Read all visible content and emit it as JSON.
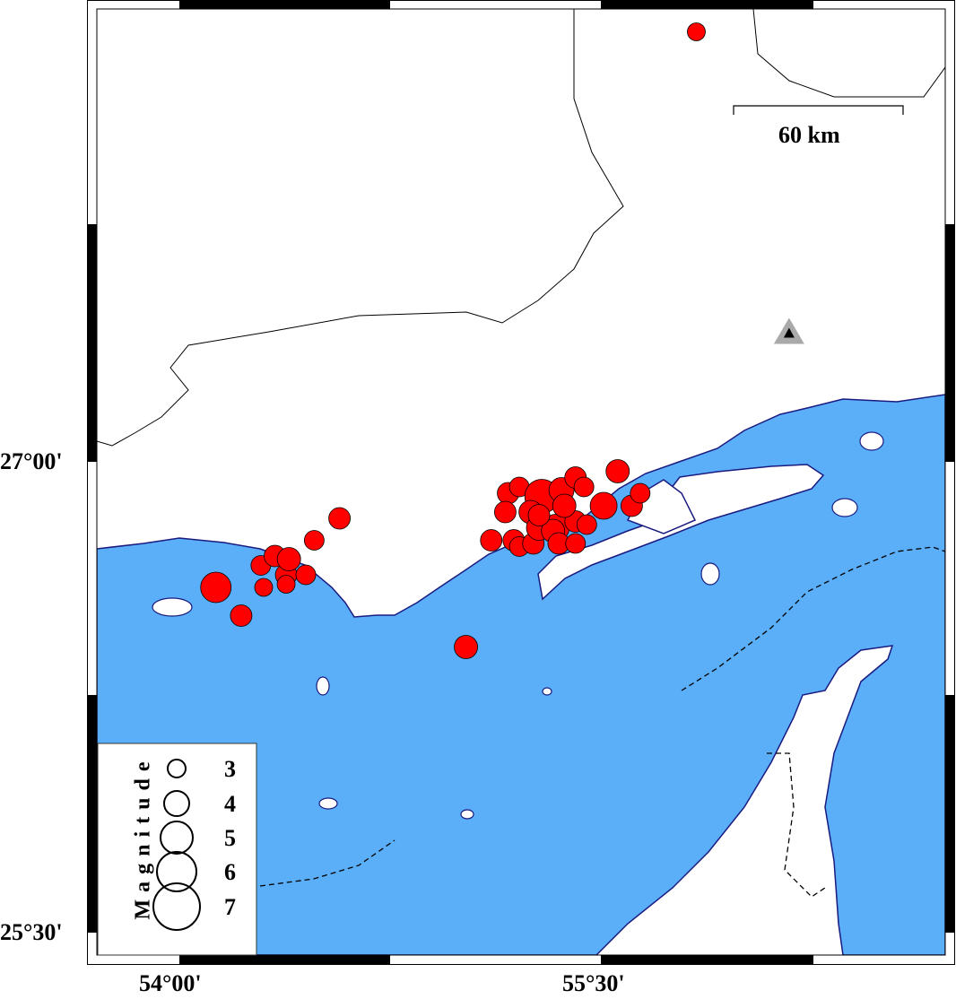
{
  "map": {
    "colors": {
      "sea": "#5aaff8",
      "land": "#ffffff",
      "coast": "#1a1a80",
      "event": "#ff0000",
      "station": "#000000"
    },
    "x_ticks": [
      "54°00'",
      "55°30'"
    ],
    "y_ticks": [
      "27°00'",
      "25°30'"
    ],
    "scale_bar": {
      "label": "60 km"
    },
    "legend": {
      "title": "Magnitude",
      "magnitudes": [
        "3",
        "4",
        "5",
        "6",
        "7"
      ]
    },
    "station": {
      "lon": 56.17,
      "lat": 27.41,
      "icon": "triangle-icon"
    },
    "events": [
      {
        "lon": 55.84,
        "lat": 28.37,
        "mag": 3.0
      },
      {
        "lon": 54.13,
        "lat": 26.6,
        "mag": 4.75
      },
      {
        "lon": 54.22,
        "lat": 26.51,
        "mag": 3.5
      },
      {
        "lon": 54.3,
        "lat": 26.6,
        "mag": 3.0
      },
      {
        "lon": 54.29,
        "lat": 26.67,
        "mag": 3.25
      },
      {
        "lon": 54.34,
        "lat": 26.7,
        "mag": 3.5
      },
      {
        "lon": 54.38,
        "lat": 26.64,
        "mag": 3.5
      },
      {
        "lon": 54.39,
        "lat": 26.69,
        "mag": 3.75
      },
      {
        "lon": 54.45,
        "lat": 26.64,
        "mag": 3.25
      },
      {
        "lon": 54.38,
        "lat": 26.61,
        "mag": 3.0
      },
      {
        "lon": 54.48,
        "lat": 26.75,
        "mag": 3.25
      },
      {
        "lon": 54.57,
        "lat": 26.82,
        "mag": 3.5
      },
      {
        "lon": 55.02,
        "lat": 26.41,
        "mag": 3.75
      },
      {
        "lon": 55.11,
        "lat": 26.75,
        "mag": 3.5
      },
      {
        "lon": 55.19,
        "lat": 26.75,
        "mag": 3.5
      },
      {
        "lon": 55.21,
        "lat": 26.73,
        "mag": 3.25
      },
      {
        "lon": 55.26,
        "lat": 26.74,
        "mag": 3.5
      },
      {
        "lon": 55.17,
        "lat": 26.9,
        "mag": 3.5
      },
      {
        "lon": 55.21,
        "lat": 26.92,
        "mag": 3.25
      },
      {
        "lon": 55.29,
        "lat": 26.89,
        "mag": 5.25
      },
      {
        "lon": 55.36,
        "lat": 26.91,
        "mag": 4.0
      },
      {
        "lon": 55.41,
        "lat": 26.95,
        "mag": 3.5
      },
      {
        "lon": 55.44,
        "lat": 26.92,
        "mag": 3.25
      },
      {
        "lon": 55.16,
        "lat": 26.84,
        "mag": 3.5
      },
      {
        "lon": 55.25,
        "lat": 26.84,
        "mag": 3.75
      },
      {
        "lon": 55.34,
        "lat": 26.79,
        "mag": 4.25
      },
      {
        "lon": 55.28,
        "lat": 26.79,
        "mag": 4.0
      },
      {
        "lon": 55.33,
        "lat": 26.78,
        "mag": 3.75
      },
      {
        "lon": 55.35,
        "lat": 26.74,
        "mag": 3.5
      },
      {
        "lon": 55.41,
        "lat": 26.74,
        "mag": 3.25
      },
      {
        "lon": 55.41,
        "lat": 26.81,
        "mag": 3.5
      },
      {
        "lon": 55.45,
        "lat": 26.8,
        "mag": 3.25
      },
      {
        "lon": 55.51,
        "lat": 26.86,
        "mag": 4.25
      },
      {
        "lon": 55.56,
        "lat": 26.97,
        "mag": 3.75
      },
      {
        "lon": 55.61,
        "lat": 26.86,
        "mag": 3.5
      },
      {
        "lon": 55.64,
        "lat": 26.9,
        "mag": 3.25
      },
      {
        "lon": 55.37,
        "lat": 26.86,
        "mag": 3.75
      },
      {
        "lon": 55.28,
        "lat": 26.83,
        "mag": 3.5
      }
    ]
  }
}
